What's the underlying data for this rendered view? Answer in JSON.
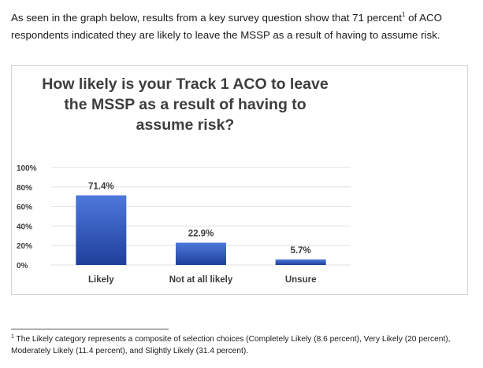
{
  "intro": {
    "text_before": "As seen in the graph below, results from a key survey question show that 71 percent",
    "marker": "1",
    "text_after": " of ACO respondents indicated they are likely to leave the MSSP as a result of having to assume risk."
  },
  "footnote": {
    "marker": "1",
    "text": " The Likely category represents a composite of selection choices (Completely Likely (8.6 percent), Very Likely (20 percent), Moderately Likely (11.4 percent), and Slightly Likely (31.4 percent)."
  },
  "chart_data": {
    "type": "bar",
    "title": "How likely is your Track 1 ACO to leave the MSSP as a result of having to assume risk?",
    "title_lines": [
      "How likely is your Track 1 ACO to leave",
      "the MSSP as a result of having to",
      "assume risk?"
    ],
    "categories": [
      "Likely",
      "Not at all likely",
      "Unsure"
    ],
    "values": [
      71.4,
      22.9,
      5.7
    ],
    "data_labels": [
      "71.4%",
      "22.9%",
      "5.7%"
    ],
    "ylim": [
      0,
      100
    ],
    "yticks": [
      0,
      20,
      40,
      60,
      80,
      100
    ],
    "ytick_labels": [
      "0%",
      "20%",
      "40%",
      "60%",
      "80%",
      "100%"
    ],
    "xlabel": "",
    "ylabel": "",
    "grid": true,
    "legend": false,
    "colors": {
      "bar_top": "#4e78dc",
      "bar_bottom": "#1f3f9a",
      "grid": "#e2e2e2",
      "text": "#3d3d3d"
    }
  }
}
